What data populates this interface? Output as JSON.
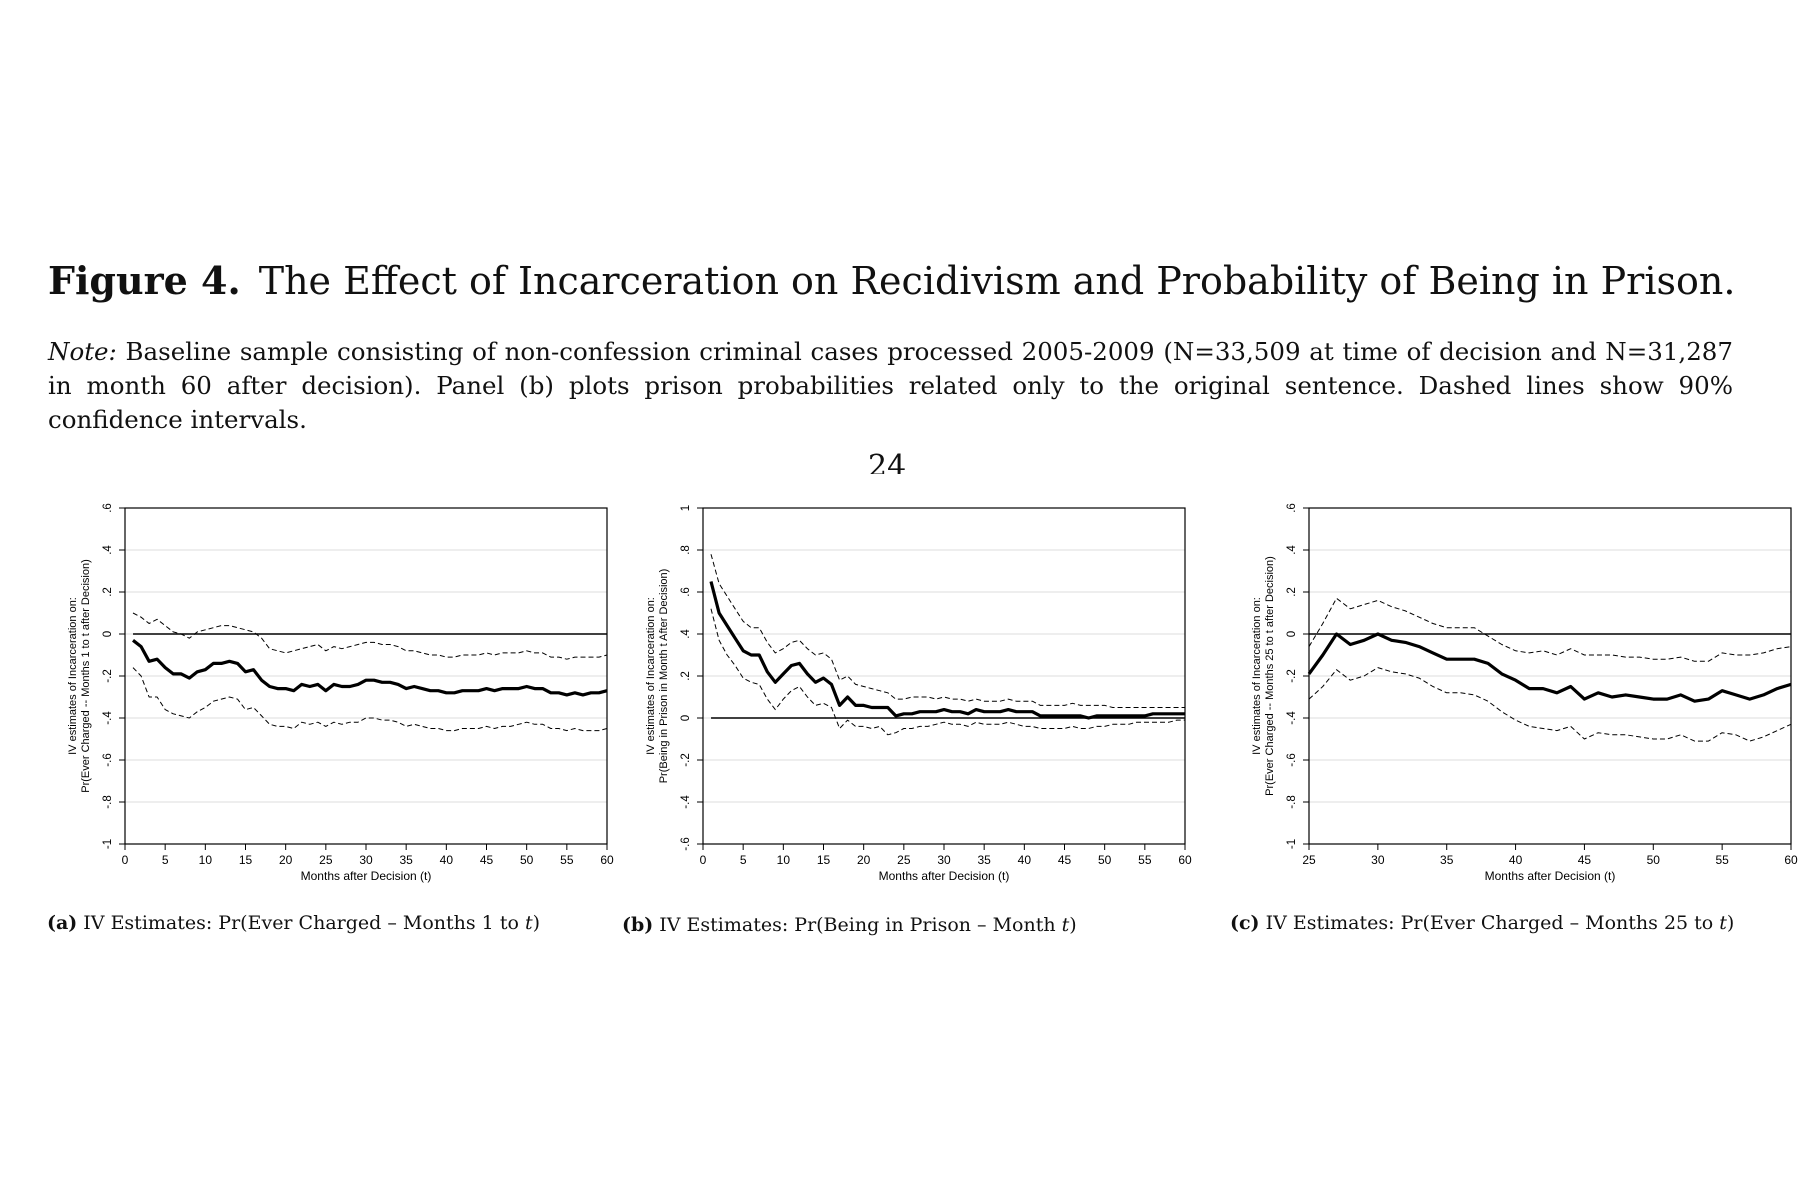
{
  "figure": {
    "number": "Figure 4.",
    "title": "The Effect of Incarceration on Recidivism and Probability of Being in Prison.",
    "note_label": "Note:",
    "note_text": "Baseline sample consisting of non-confession criminal cases processed 2005-2009 (N=33,509 at time of decision and N=31,287 in month 60 after decision). Panel (b) plots prison probabilities related only to the original sentence. Dashed lines show 90% confidence intervals.",
    "page_number": "24"
  },
  "captions": [
    {
      "label": "(a)",
      "text": "IV Estimates: Pr(Ever Charged – Months 1 to ",
      "italic": "t",
      "close": ")"
    },
    {
      "label": "(b)",
      "text": "IV Estimates: Pr(Being in Prison – Month ",
      "italic": "t",
      "close": ")"
    },
    {
      "label": "(c)",
      "text": "IV Estimates: Pr(Ever Charged – Months 25 to ",
      "italic": "t",
      "close": ")"
    }
  ],
  "chart_data": [
    {
      "type": "line",
      "panel": "a",
      "xlabel": "Months after Decision (t)",
      "ylabel": [
        "IV estimates of Incarceration on:",
        "Pr(Ever Charged -- Months 1 to t after Decision)"
      ],
      "xlim": [
        0,
        60
      ],
      "ylim": [
        -1,
        0.6
      ],
      "xticks": [
        0,
        5,
        10,
        15,
        20,
        25,
        30,
        35,
        40,
        45,
        50,
        55,
        60
      ],
      "xtick_labels": [
        "0",
        "5",
        "10",
        "15",
        "20",
        "25",
        "30",
        "35",
        "40",
        "45",
        "50",
        "55",
        "60"
      ],
      "yticks": [
        -1,
        -0.8,
        -0.6,
        -0.4,
        -0.2,
        0,
        0.2,
        0.4,
        0.6
      ],
      "ytick_labels": [
        "-1",
        "-.8",
        "-.6",
        "-.4",
        "-.2",
        "0",
        ".2",
        ".4",
        ".6"
      ],
      "grid": true,
      "reference_line": 0,
      "x": [
        1,
        2,
        3,
        4,
        5,
        6,
        7,
        8,
        9,
        10,
        11,
        12,
        13,
        14,
        15,
        16,
        17,
        18,
        19,
        20,
        21,
        22,
        23,
        24,
        25,
        26,
        27,
        28,
        29,
        30,
        31,
        32,
        33,
        34,
        35,
        36,
        37,
        38,
        39,
        40,
        41,
        42,
        43,
        44,
        45,
        46,
        47,
        48,
        49,
        50,
        51,
        52,
        53,
        54,
        55,
        56,
        57,
        58,
        59,
        60
      ],
      "series": [
        {
          "role": "estimate",
          "values": [
            -0.03,
            -0.06,
            -0.13,
            -0.12,
            -0.16,
            -0.19,
            -0.19,
            -0.21,
            -0.18,
            -0.17,
            -0.14,
            -0.14,
            -0.13,
            -0.14,
            -0.18,
            -0.17,
            -0.22,
            -0.25,
            -0.26,
            -0.26,
            -0.27,
            -0.24,
            -0.25,
            -0.24,
            -0.27,
            -0.24,
            -0.25,
            -0.25,
            -0.24,
            -0.22,
            -0.22,
            -0.23,
            -0.23,
            -0.24,
            -0.26,
            -0.25,
            -0.26,
            -0.27,
            -0.27,
            -0.28,
            -0.28,
            -0.27,
            -0.27,
            -0.27,
            -0.26,
            -0.27,
            -0.26,
            -0.26,
            -0.26,
            -0.25,
            -0.26,
            -0.26,
            -0.28,
            -0.28,
            -0.29,
            -0.28,
            -0.29,
            -0.28,
            -0.28,
            -0.27
          ]
        },
        {
          "role": "ci_upper",
          "values": [
            0.1,
            0.08,
            0.05,
            0.07,
            0.04,
            0.01,
            0.0,
            -0.02,
            0.01,
            0.02,
            0.03,
            0.04,
            0.04,
            0.03,
            0.02,
            0.01,
            -0.02,
            -0.07,
            -0.08,
            -0.09,
            -0.08,
            -0.07,
            -0.06,
            -0.05,
            -0.08,
            -0.06,
            -0.07,
            -0.06,
            -0.05,
            -0.04,
            -0.04,
            -0.05,
            -0.05,
            -0.06,
            -0.08,
            -0.08,
            -0.09,
            -0.1,
            -0.1,
            -0.11,
            -0.11,
            -0.1,
            -0.1,
            -0.1,
            -0.09,
            -0.1,
            -0.09,
            -0.09,
            -0.09,
            -0.08,
            -0.09,
            -0.09,
            -0.11,
            -0.11,
            -0.12,
            -0.11,
            -0.11,
            -0.11,
            -0.11,
            -0.1
          ]
        },
        {
          "role": "ci_lower",
          "values": [
            -0.16,
            -0.2,
            -0.3,
            -0.3,
            -0.36,
            -0.38,
            -0.39,
            -0.4,
            -0.37,
            -0.35,
            -0.32,
            -0.31,
            -0.3,
            -0.31,
            -0.36,
            -0.35,
            -0.39,
            -0.43,
            -0.44,
            -0.44,
            -0.45,
            -0.42,
            -0.43,
            -0.42,
            -0.44,
            -0.42,
            -0.43,
            -0.42,
            -0.42,
            -0.4,
            -0.4,
            -0.41,
            -0.41,
            -0.42,
            -0.44,
            -0.43,
            -0.44,
            -0.45,
            -0.45,
            -0.46,
            -0.46,
            -0.45,
            -0.45,
            -0.45,
            -0.44,
            -0.45,
            -0.44,
            -0.44,
            -0.43,
            -0.42,
            -0.43,
            -0.43,
            -0.45,
            -0.45,
            -0.46,
            -0.45,
            -0.46,
            -0.46,
            -0.46,
            -0.45
          ]
        }
      ]
    },
    {
      "type": "line",
      "panel": "b",
      "xlabel": "Months after Decision (t)",
      "ylabel": [
        "IV estimates of Incarceration on:",
        "Pr(Being in Prison in Month t After Decision)"
      ],
      "xlim": [
        0,
        60
      ],
      "ylim": [
        -0.6,
        1
      ],
      "xticks": [
        0,
        5,
        10,
        15,
        20,
        25,
        30,
        35,
        40,
        45,
        50,
        55,
        60
      ],
      "xtick_labels": [
        "0",
        "5",
        "10",
        "15",
        "20",
        "25",
        "30",
        "35",
        "40",
        "45",
        "50",
        "55",
        "60"
      ],
      "yticks": [
        -0.6,
        -0.4,
        -0.2,
        0,
        0.2,
        0.4,
        0.6,
        0.8,
        1
      ],
      "ytick_labels": [
        "-.6",
        "-.4",
        "-.2",
        "0",
        ".2",
        ".4",
        ".6",
        ".8",
        "1"
      ],
      "grid": true,
      "reference_line": 0,
      "x": [
        1,
        2,
        3,
        4,
        5,
        6,
        7,
        8,
        9,
        10,
        11,
        12,
        13,
        14,
        15,
        16,
        17,
        18,
        19,
        20,
        21,
        22,
        23,
        24,
        25,
        26,
        27,
        28,
        29,
        30,
        31,
        32,
        33,
        34,
        35,
        36,
        37,
        38,
        39,
        40,
        41,
        42,
        43,
        44,
        45,
        46,
        47,
        48,
        49,
        50,
        51,
        52,
        53,
        54,
        55,
        56,
        57,
        58,
        59,
        60
      ],
      "series": [
        {
          "role": "estimate",
          "values": [
            0.65,
            0.5,
            0.44,
            0.38,
            0.32,
            0.3,
            0.3,
            0.22,
            0.17,
            0.21,
            0.25,
            0.26,
            0.21,
            0.17,
            0.19,
            0.16,
            0.06,
            0.1,
            0.06,
            0.06,
            0.05,
            0.05,
            0.05,
            0.01,
            0.02,
            0.02,
            0.03,
            0.03,
            0.03,
            0.04,
            0.03,
            0.03,
            0.02,
            0.04,
            0.03,
            0.03,
            0.03,
            0.04,
            0.03,
            0.03,
            0.03,
            0.01,
            0.01,
            0.01,
            0.01,
            0.01,
            0.01,
            0.0,
            0.01,
            0.01,
            0.01,
            0.01,
            0.01,
            0.01,
            0.01,
            0.02,
            0.02,
            0.02,
            0.02,
            0.02
          ]
        },
        {
          "role": "ci_upper",
          "values": [
            0.78,
            0.64,
            0.58,
            0.52,
            0.46,
            0.43,
            0.43,
            0.36,
            0.31,
            0.33,
            0.36,
            0.37,
            0.33,
            0.3,
            0.31,
            0.28,
            0.18,
            0.2,
            0.16,
            0.15,
            0.14,
            0.13,
            0.12,
            0.09,
            0.09,
            0.1,
            0.1,
            0.1,
            0.09,
            0.1,
            0.09,
            0.09,
            0.08,
            0.09,
            0.08,
            0.08,
            0.08,
            0.09,
            0.08,
            0.08,
            0.08,
            0.06,
            0.06,
            0.06,
            0.06,
            0.07,
            0.06,
            0.06,
            0.06,
            0.06,
            0.05,
            0.05,
            0.05,
            0.05,
            0.05,
            0.05,
            0.05,
            0.05,
            0.05,
            0.05
          ]
        },
        {
          "role": "ci_lower",
          "values": [
            0.52,
            0.37,
            0.3,
            0.25,
            0.19,
            0.17,
            0.16,
            0.09,
            0.04,
            0.09,
            0.13,
            0.15,
            0.1,
            0.06,
            0.07,
            0.05,
            -0.05,
            -0.01,
            -0.04,
            -0.04,
            -0.05,
            -0.04,
            -0.08,
            -0.07,
            -0.05,
            -0.05,
            -0.04,
            -0.04,
            -0.03,
            -0.02,
            -0.03,
            -0.03,
            -0.04,
            -0.02,
            -0.03,
            -0.03,
            -0.03,
            -0.02,
            -0.03,
            -0.04,
            -0.04,
            -0.05,
            -0.05,
            -0.05,
            -0.05,
            -0.04,
            -0.05,
            -0.05,
            -0.04,
            -0.04,
            -0.03,
            -0.03,
            -0.03,
            -0.02,
            -0.02,
            -0.02,
            -0.02,
            -0.02,
            -0.01,
            -0.01
          ]
        }
      ]
    },
    {
      "type": "line",
      "panel": "c",
      "xlabel": "Months after Decision (t)",
      "ylabel": [
        "IV estimates of Incarceration on:",
        "Pr(Ever Charged -- Months 25 to t  after Decision)"
      ],
      "xlim": [
        25,
        60
      ],
      "ylim": [
        -1,
        0.6
      ],
      "xticks": [
        25,
        30,
        35,
        40,
        45,
        50,
        55,
        60
      ],
      "xtick_labels": [
        "25",
        "30",
        "35",
        "40",
        "45",
        "50",
        "55",
        "60"
      ],
      "yticks": [
        -1,
        -0.8,
        -0.6,
        -0.4,
        -0.2,
        0,
        0.2,
        0.4,
        0.6
      ],
      "ytick_labels": [
        "-1",
        "-.8",
        "-.6",
        "-.4",
        "-.2",
        "0",
        ".2",
        ".4",
        ".6"
      ],
      "grid": true,
      "reference_line": 0,
      "x": [
        25,
        26,
        27,
        28,
        29,
        30,
        31,
        32,
        33,
        34,
        35,
        36,
        37,
        38,
        39,
        40,
        41,
        42,
        43,
        44,
        45,
        46,
        47,
        48,
        49,
        50,
        51,
        52,
        53,
        54,
        55,
        56,
        57,
        58,
        59,
        60
      ],
      "series": [
        {
          "role": "estimate",
          "values": [
            -0.19,
            -0.1,
            0.0,
            -0.05,
            -0.03,
            0.0,
            -0.03,
            -0.04,
            -0.06,
            -0.09,
            -0.12,
            -0.12,
            -0.12,
            -0.14,
            -0.19,
            -0.22,
            -0.26,
            -0.26,
            -0.28,
            -0.25,
            -0.31,
            -0.28,
            -0.3,
            -0.29,
            -0.3,
            -0.31,
            -0.31,
            -0.29,
            -0.32,
            -0.31,
            -0.27,
            -0.29,
            -0.31,
            -0.29,
            -0.26,
            -0.24
          ]
        },
        {
          "role": "ci_upper",
          "values": [
            -0.06,
            0.05,
            0.17,
            0.12,
            0.14,
            0.16,
            0.13,
            0.11,
            0.08,
            0.05,
            0.03,
            0.03,
            0.03,
            -0.01,
            -0.05,
            -0.08,
            -0.09,
            -0.08,
            -0.1,
            -0.07,
            -0.1,
            -0.1,
            -0.1,
            -0.11,
            -0.11,
            -0.12,
            -0.12,
            -0.11,
            -0.13,
            -0.13,
            -0.09,
            -0.1,
            -0.1,
            -0.09,
            -0.07,
            -0.06
          ]
        },
        {
          "role": "ci_lower",
          "values": [
            -0.31,
            -0.25,
            -0.17,
            -0.22,
            -0.2,
            -0.16,
            -0.18,
            -0.19,
            -0.21,
            -0.25,
            -0.28,
            -0.28,
            -0.29,
            -0.32,
            -0.37,
            -0.41,
            -0.44,
            -0.45,
            -0.46,
            -0.44,
            -0.5,
            -0.47,
            -0.48,
            -0.48,
            -0.49,
            -0.5,
            -0.5,
            -0.48,
            -0.51,
            -0.51,
            -0.47,
            -0.48,
            -0.51,
            -0.49,
            -0.46,
            -0.43
          ]
        }
      ]
    }
  ]
}
